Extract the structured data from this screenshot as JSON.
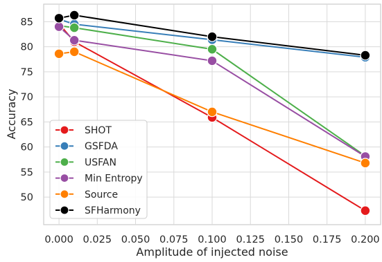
{
  "chart_data": {
    "type": "line",
    "title": "",
    "xlabel": "Amplitude of injected noise",
    "ylabel": "Accuracy",
    "xlim": [
      -0.01,
      0.21
    ],
    "ylim": [
      44.5,
      88.5
    ],
    "x_ticks": [
      0.0,
      0.025,
      0.05,
      0.075,
      0.1,
      0.125,
      0.15,
      0.175,
      0.2
    ],
    "x_tick_labels": [
      "0.000",
      "0.025",
      "0.050",
      "0.075",
      "0.100",
      "0.125",
      "0.150",
      "0.175",
      "0.200"
    ],
    "y_ticks": [
      50,
      55,
      60,
      65,
      70,
      75,
      80,
      85
    ],
    "y_tick_labels": [
      "50",
      "55",
      "60",
      "65",
      "70",
      "75",
      "80",
      "85"
    ],
    "x": [
      0.0,
      0.01,
      0.1,
      0.2
    ],
    "grid": true,
    "legend_position": "lower-left",
    "series": [
      {
        "name": "SHOT",
        "color": "#e41a1c",
        "values": [
          84.6,
          81.0,
          65.9,
          47.3
        ]
      },
      {
        "name": "GSFDA",
        "color": "#377eb8",
        "values": [
          85.5,
          84.5,
          81.4,
          77.9
        ]
      },
      {
        "name": "USFAN",
        "color": "#4daf4a",
        "values": [
          84.2,
          83.8,
          79.5,
          58.2
        ]
      },
      {
        "name": "Min Entropy",
        "color": "#984ea3",
        "values": [
          84.0,
          81.3,
          77.2,
          58.1
        ]
      },
      {
        "name": "Source",
        "color": "#ff7f00",
        "values": [
          78.6,
          79.0,
          67.0,
          56.8
        ]
      },
      {
        "name": "SFHarmony",
        "color": "#000000",
        "values": [
          85.7,
          86.3,
          82.0,
          78.3
        ]
      }
    ]
  }
}
